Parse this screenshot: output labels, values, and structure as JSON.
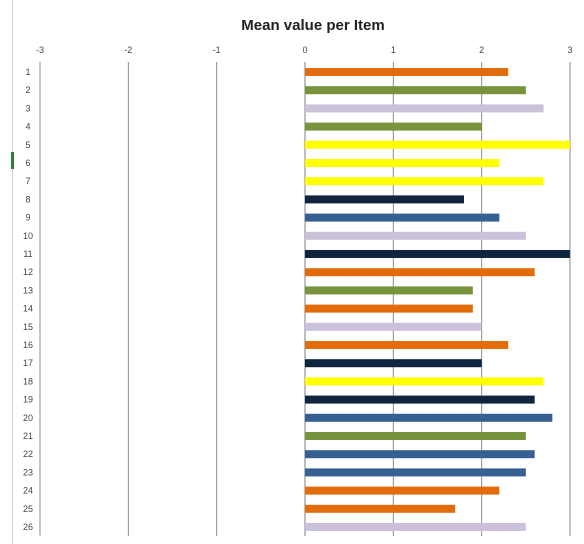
{
  "chart_data": {
    "type": "bar",
    "orientation": "horizontal",
    "title": "Mean value per Item",
    "xlabel": "",
    "ylabel": "",
    "xlim": [
      -3,
      3
    ],
    "xticks": [
      -3,
      -2,
      -1,
      0,
      1,
      2,
      3
    ],
    "xtick_labels": [
      "-3",
      "-2",
      "-1",
      "0",
      "1",
      "2",
      "3"
    ],
    "grid": "vertical",
    "categories": [
      "1",
      "2",
      "3",
      "4",
      "5",
      "6",
      "7",
      "8",
      "9",
      "10",
      "11",
      "12",
      "13",
      "14",
      "15",
      "16",
      "17",
      "18",
      "19",
      "20",
      "21",
      "22",
      "23",
      "24",
      "25",
      "26"
    ],
    "values": [
      2.3,
      2.5,
      2.7,
      2.0,
      3.0,
      2.2,
      2.7,
      1.8,
      2.2,
      2.5,
      3.0,
      2.6,
      1.9,
      1.9,
      2.0,
      2.3,
      2.0,
      2.7,
      2.6,
      2.8,
      2.5,
      2.6,
      2.5,
      2.2,
      1.7,
      2.5
    ],
    "bar_colors": [
      "#e36c0a",
      "#77933c",
      "#ccc1da",
      "#77933c",
      "#ffff00",
      "#ffff00",
      "#ffff00",
      "#0f243e",
      "#366092",
      "#ccc1da",
      "#0f243e",
      "#e36c0a",
      "#77933c",
      "#e36c0a",
      "#ccc1da",
      "#e36c0a",
      "#0f243e",
      "#ffff00",
      "#0f243e",
      "#366092",
      "#77933c",
      "#366092",
      "#366092",
      "#e36c0a",
      "#e36c0a",
      "#ccc1da"
    ]
  }
}
